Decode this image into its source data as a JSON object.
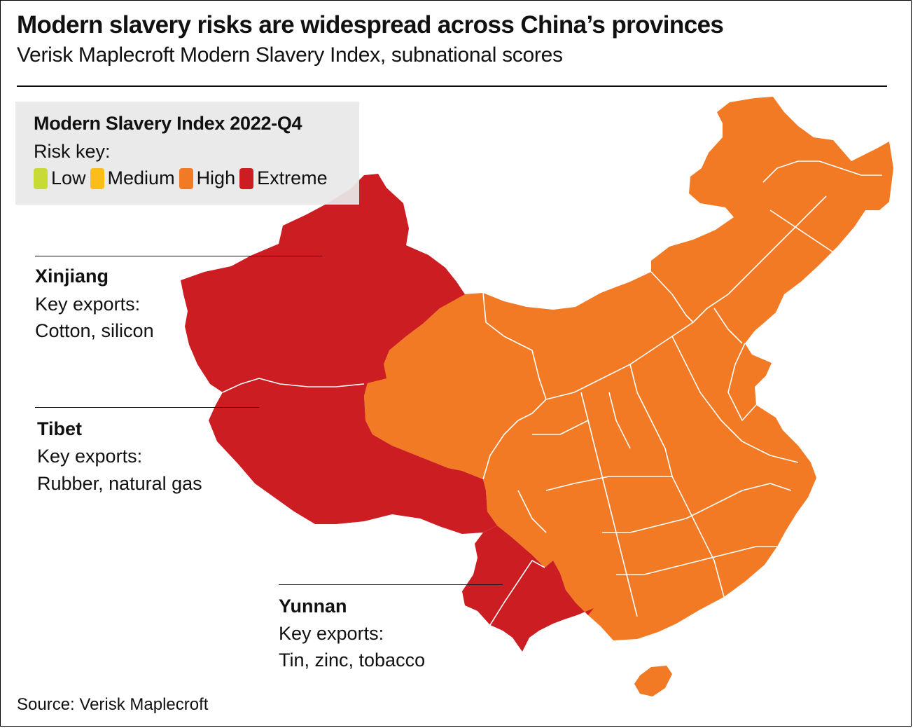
{
  "title": "Modern slavery risks are widespread across China’s provinces",
  "subtitle": "Verisk Maplecroft Modern Slavery Index, subnational scores",
  "legend": {
    "title": "Modern Slavery Index 2022-Q4",
    "subtitle": "Risk key:",
    "items": [
      {
        "label": "Low",
        "color": "#c7da36"
      },
      {
        "label": "Medium",
        "color": "#fbbd19"
      },
      {
        "label": "High",
        "color": "#f37a25"
      },
      {
        "label": "Extreme",
        "color": "#cc1d23"
      }
    ]
  },
  "regions": [
    {
      "name": "Xinjiang",
      "risk": "Extreme",
      "color": "#cc1d23"
    },
    {
      "name": "Tibet",
      "risk": "Extreme",
      "color": "#cc1d23"
    },
    {
      "name": "Yunnan",
      "risk": "Extreme",
      "color": "#cc1d23"
    },
    {
      "name": "Other provinces",
      "risk": "High",
      "color": "#f37a25"
    }
  ],
  "annotations": {
    "xinjiang": {
      "name": "Xinjiang",
      "line1": "Key exports:",
      "line2": "Cotton, silicon"
    },
    "tibet": {
      "name": "Tibet",
      "line1": "Key exports:",
      "line2": "Rubber, natural gas"
    },
    "yunnan": {
      "name": "Yunnan",
      "line1": "Key exports:",
      "line2": "Tin, zinc, tobacco"
    }
  },
  "source": "Source: Verisk Maplecroft"
}
